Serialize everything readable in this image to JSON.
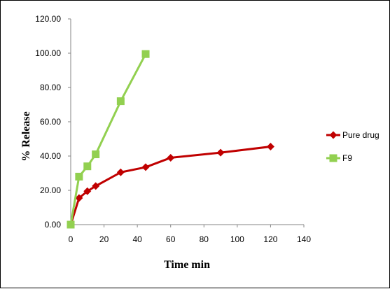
{
  "chart_data": {
    "type": "line",
    "title": "",
    "xlabel": "Time min",
    "ylabel": "% Release",
    "xlim": [
      0,
      140
    ],
    "ylim": [
      0,
      120
    ],
    "x_ticks": [
      "0",
      "20",
      "40",
      "60",
      "80",
      "100",
      "120",
      "140"
    ],
    "y_ticks": [
      "0.00",
      "20.00",
      "40.00",
      "60.00",
      "80.00",
      "100.00",
      "120.00"
    ],
    "grid": false,
    "legend_position": "right",
    "series": [
      {
        "name": "Pure drug",
        "color": "#C00000",
        "marker": "diamond",
        "x": [
          0,
          5,
          10,
          15,
          30,
          45,
          60,
          90,
          120
        ],
        "y": [
          0,
          15.5,
          19.5,
          22.5,
          30.5,
          33.5,
          39,
          42,
          45.5
        ]
      },
      {
        "name": "F9",
        "color": "#92D050",
        "marker": "square",
        "x": [
          0,
          5,
          10,
          15,
          30,
          45
        ],
        "y": [
          0,
          28,
          34,
          41,
          72,
          99.5
        ]
      }
    ]
  }
}
